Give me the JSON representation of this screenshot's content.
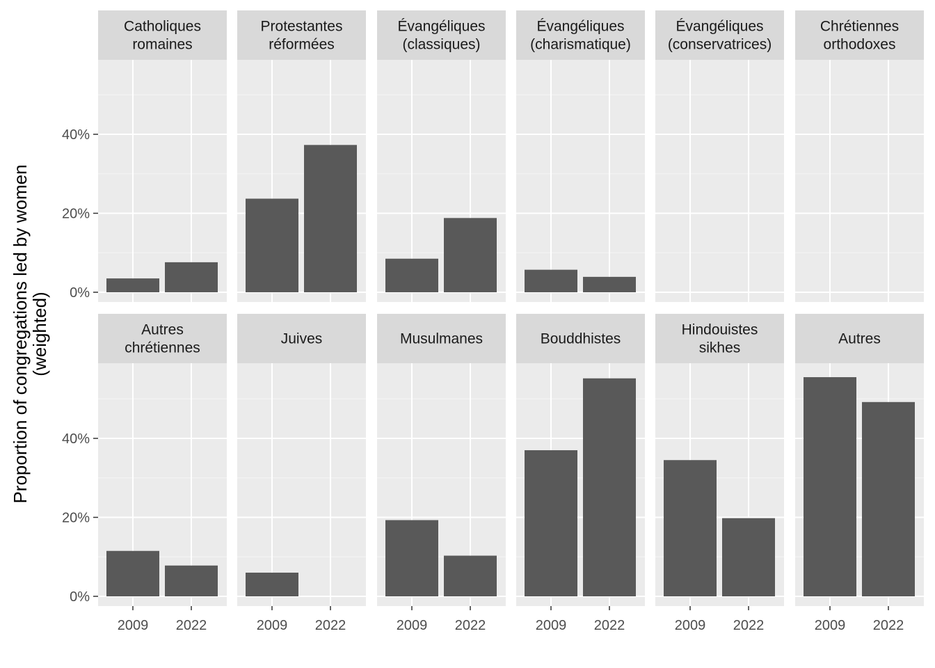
{
  "chart_data": {
    "type": "bar",
    "facet_layout": "2 rows x 6 columns",
    "ylabel": "Proportion of congregations led by women\n(weighted)",
    "xlabel": "",
    "categories": [
      "2009",
      "2022"
    ],
    "y_ticks": [
      "0%",
      "20%",
      "40%"
    ],
    "ylim": [
      0,
      0.6
    ],
    "grid": true,
    "legend": "none",
    "colors": {
      "panel_background": "#ebebeb",
      "strip_background": "#d9d9d9",
      "bar_fill": "#595959",
      "grid_major": "#ffffff",
      "grid_minor": "#f5f5f5"
    },
    "facets": [
      {
        "label": "Catholiques\nromaines",
        "values": [
          0.035,
          0.076
        ]
      },
      {
        "label": "Protestantes\nréformées",
        "values": [
          0.237,
          0.373
        ]
      },
      {
        "label": "Évangéliques\n(classiques)",
        "values": [
          0.085,
          0.188
        ]
      },
      {
        "label": "Évangéliques\n(charismatique)",
        "values": [
          0.057,
          0.039
        ]
      },
      {
        "label": "Évangéliques\n(conservatrices)",
        "values": [
          0,
          0
        ]
      },
      {
        "label": "Chrétiennes\northodoxes",
        "values": [
          0,
          0
        ]
      },
      {
        "label": "Autres\nchrétiennes",
        "values": [
          0.115,
          0.078
        ]
      },
      {
        "label": "Juives",
        "values": [
          0.06,
          0
        ]
      },
      {
        "label": "Musulmanes",
        "values": [
          0.193,
          0.103
        ]
      },
      {
        "label": "Bouddhistes",
        "values": [
          0.37,
          0.552
        ]
      },
      {
        "label": "Hindouistes\nsikhes",
        "values": [
          0.345,
          0.198
        ]
      },
      {
        "label": "Autres",
        "values": [
          0.555,
          0.492
        ]
      }
    ]
  }
}
